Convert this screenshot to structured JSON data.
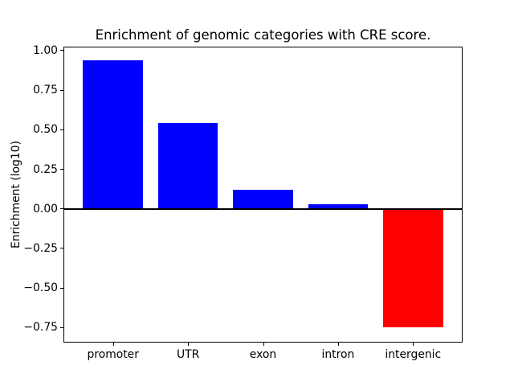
{
  "figure": {
    "title": "Enrichment of genomic categories with CRE score.",
    "ylabel": "Enrichment (log10)"
  },
  "chart_data": {
    "type": "bar",
    "title": "Enrichment of genomic categories with CRE score.",
    "xlabel": "",
    "ylabel": "Enrichment (log10)",
    "categories": [
      "promoter",
      "UTR",
      "exon",
      "intron",
      "intergenic"
    ],
    "values": [
      0.94,
      0.54,
      0.12,
      0.03,
      -0.75
    ],
    "positive_color": "#0000ff",
    "negative_color": "#ff0000",
    "bar_width": 0.8,
    "yticks": [
      1.0,
      0.75,
      0.5,
      0.25,
      0.0,
      -0.25,
      -0.5,
      -0.75
    ],
    "ytick_labels": [
      "1.00",
      "0.75",
      "0.50",
      "0.25",
      "0.00",
      "−0.25",
      "−0.50",
      "−0.75"
    ],
    "ylim": [
      -0.84,
      1.02
    ],
    "xlim": [
      -0.65,
      4.65
    ],
    "grid": false,
    "legend": false,
    "zero_line": true,
    "zero_line_color": "#000000",
    "frame_color": "#000000",
    "background_color": "#ffffff"
  }
}
